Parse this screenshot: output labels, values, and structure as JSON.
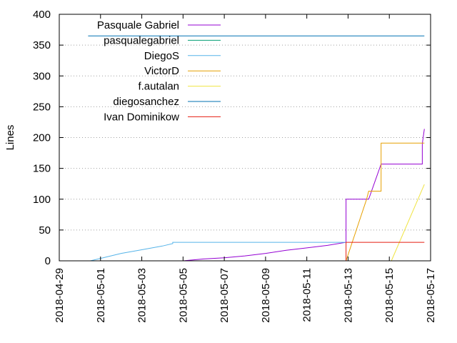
{
  "chart_data": {
    "type": "line",
    "xlabel": "",
    "ylabel": "Lines",
    "ylim": [
      0,
      400
    ],
    "yticks": [
      0,
      50,
      100,
      150,
      200,
      250,
      300,
      350,
      400
    ],
    "xlim": [
      "2018-04-29",
      "2018-05-17"
    ],
    "xticks": [
      "2018-04-29",
      "2018-05-01",
      "2018-05-03",
      "2018-05-05",
      "2018-05-07",
      "2018-05-09",
      "2018-05-11",
      "2018-05-13",
      "2018-05-15",
      "2018-05-17"
    ],
    "grid": "horizontal-dotted",
    "legend_position": "top-left",
    "series": [
      {
        "name": "Pasquale Gabriel",
        "color": "#9400d3",
        "points": [
          [
            "2018-05-05",
            0
          ],
          [
            "2018-05-06",
            3
          ],
          [
            "2018-05-07",
            5
          ],
          [
            "2018-05-08",
            8
          ],
          [
            "2018-05-09",
            12
          ],
          [
            "2018-05-10",
            17
          ],
          [
            "2018-05-11",
            21
          ],
          [
            "2018-05-12",
            25
          ],
          [
            "2018-05-12.9",
            30
          ],
          [
            "2018-05-12.9",
            100
          ],
          [
            "2018-05-14",
            100
          ],
          [
            "2018-05-14.6",
            157
          ],
          [
            "2018-05-16.6",
            157
          ],
          [
            "2018-05-16.6",
            190
          ],
          [
            "2018-05-16.7",
            214
          ]
        ]
      },
      {
        "name": "pasqualegabriel",
        "color": "#009e73",
        "points": [
          [
            "2018-05-12.9",
            0
          ],
          [
            "2018-05-16.7",
            0
          ]
        ]
      },
      {
        "name": "DiegoS",
        "color": "#56b4e9",
        "points": [
          [
            "2018-04-30.5",
            0
          ],
          [
            "2018-05-01",
            4
          ],
          [
            "2018-05-02",
            12
          ],
          [
            "2018-05-03",
            18
          ],
          [
            "2018-05-04",
            24
          ],
          [
            "2018-05-04.5",
            28
          ],
          [
            "2018-05-04.5",
            30
          ],
          [
            "2018-05-12.9",
            30
          ]
        ]
      },
      {
        "name": "VictorD",
        "color": "#e69f00",
        "points": [
          [
            "2018-05-12.9",
            0
          ],
          [
            "2018-05-13.9",
            100
          ],
          [
            "2018-05-14",
            113
          ],
          [
            "2018-05-14.6",
            113
          ],
          [
            "2018-05-14.6",
            191
          ],
          [
            "2018-05-16.7",
            191
          ]
        ]
      },
      {
        "name": "f.autalan",
        "color": "#f0e442",
        "points": [
          [
            "2018-05-15.1",
            0
          ],
          [
            "2018-05-16.7",
            124
          ]
        ]
      },
      {
        "name": "diegosanchez",
        "color": "#0072b2",
        "points": [
          [
            "2018-04-30.4",
            365
          ],
          [
            "2018-05-16.7",
            365
          ]
        ]
      },
      {
        "name": "Ivan Dominikow",
        "color": "#e51e10",
        "points": [
          [
            "2018-05-12.9",
            0
          ],
          [
            "2018-05-12.9",
            30
          ],
          [
            "2018-05-16.7",
            30
          ]
        ]
      }
    ]
  }
}
